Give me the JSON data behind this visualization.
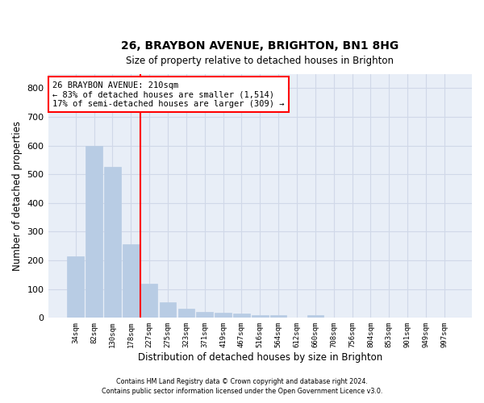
{
  "title_line1": "26, BRAYBON AVENUE, BRIGHTON, BN1 8HG",
  "title_line2": "Size of property relative to detached houses in Brighton",
  "xlabel": "Distribution of detached houses by size in Brighton",
  "ylabel": "Number of detached properties",
  "bar_labels": [
    "34sqm",
    "82sqm",
    "130sqm",
    "178sqm",
    "227sqm",
    "275sqm",
    "323sqm",
    "371sqm",
    "419sqm",
    "467sqm",
    "516sqm",
    "564sqm",
    "612sqm",
    "660sqm",
    "708sqm",
    "756sqm",
    "804sqm",
    "853sqm",
    "901sqm",
    "949sqm",
    "997sqm"
  ],
  "bar_values": [
    213,
    598,
    525,
    256,
    118,
    55,
    33,
    20,
    17,
    14,
    8,
    10,
    0,
    8,
    0,
    0,
    0,
    0,
    0,
    0,
    0
  ],
  "bar_color": "#b8cce4",
  "bar_edge_color": "#b8cce4",
  "grid_color": "#d0d8e8",
  "bg_color": "#e8eef7",
  "property_line_x": 4,
  "property_line_label": "26 BRAYBON AVENUE: 210sqm",
  "annotation_line1": "← 83% of detached houses are smaller (1,514)",
  "annotation_line2": "17% of semi-detached houses are larger (309) →",
  "box_color": "red",
  "footnote1": "Contains HM Land Registry data © Crown copyright and database right 2024.",
  "footnote2": "Contains public sector information licensed under the Open Government Licence v3.0.",
  "ylim": [
    0,
    850
  ],
  "yticks": [
    0,
    100,
    200,
    300,
    400,
    500,
    600,
    700,
    800
  ]
}
